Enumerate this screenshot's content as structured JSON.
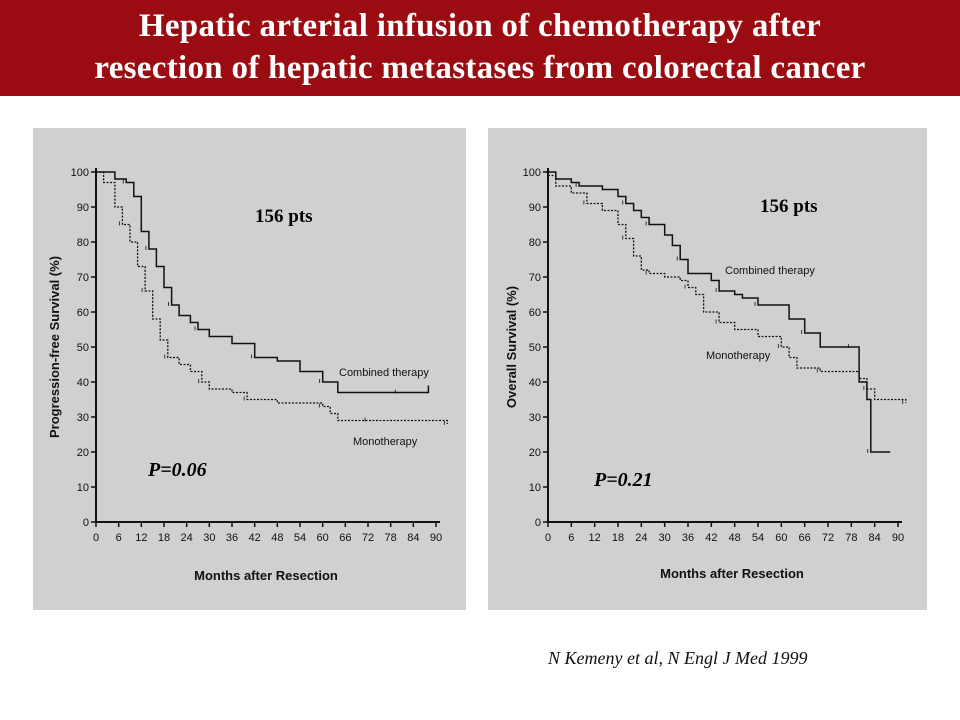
{
  "slide": {
    "title_line1": "Hepatic arterial infusion of chemotherapy after",
    "title_line2": "resection of hepatic metastases from colorectal cancer",
    "citation": "N Kemeny et al,  N Engl J Med 1999",
    "colors": {
      "title_bg": "#9b0c12",
      "panel_bg": "#d0d0d0"
    }
  },
  "chart_data": [
    {
      "type": "line",
      "xlabel": "Months after Resection",
      "ylabel": "Progression-free Survival (%)",
      "xlim": [
        0,
        90
      ],
      "ylim": [
        0,
        100
      ],
      "xticks": [
        0,
        6,
        12,
        18,
        24,
        30,
        36,
        42,
        48,
        54,
        60,
        66,
        72,
        78,
        84,
        90
      ],
      "yticks": [
        0,
        10,
        20,
        30,
        40,
        50,
        60,
        70,
        80,
        90,
        100
      ],
      "annotations": {
        "patients": "156 pts",
        "p_value": "P=0.06"
      },
      "series": [
        {
          "name": "Combined therapy",
          "style": "solid",
          "points": [
            [
              0,
              100
            ],
            [
              4,
              100
            ],
            [
              5,
              98
            ],
            [
              8,
              97
            ],
            [
              10,
              93
            ],
            [
              12,
              83
            ],
            [
              14,
              78
            ],
            [
              16,
              73
            ],
            [
              18,
              67
            ],
            [
              20,
              62
            ],
            [
              22,
              59
            ],
            [
              25,
              57
            ],
            [
              27,
              55
            ],
            [
              30,
              53
            ],
            [
              36,
              51
            ],
            [
              42,
              47
            ],
            [
              48,
              46
            ],
            [
              54,
              43
            ],
            [
              60,
              40
            ],
            [
              64,
              37
            ],
            [
              72,
              37
            ],
            [
              80,
              37
            ],
            [
              88,
              37
            ],
            [
              88,
              39
            ]
          ]
        },
        {
          "name": "Monotherapy",
          "style": "dashed",
          "points": [
            [
              0,
              100
            ],
            [
              2,
              97
            ],
            [
              5,
              90
            ],
            [
              7,
              85
            ],
            [
              9,
              80
            ],
            [
              11,
              73
            ],
            [
              13,
              66
            ],
            [
              15,
              58
            ],
            [
              17,
              52
            ],
            [
              19,
              47
            ],
            [
              22,
              45
            ],
            [
              25,
              43
            ],
            [
              28,
              40
            ],
            [
              30,
              38
            ],
            [
              36,
              37
            ],
            [
              40,
              35
            ],
            [
              48,
              34
            ],
            [
              55,
              34
            ],
            [
              60,
              33
            ],
            [
              62,
              31
            ],
            [
              64,
              29
            ],
            [
              72,
              29
            ],
            [
              80,
              29
            ],
            [
              90,
              29
            ],
            [
              93,
              28
            ]
          ]
        }
      ]
    },
    {
      "type": "line",
      "xlabel": "Months after Resection",
      "ylabel": "Overall Survival (%)",
      "xlim": [
        0,
        90
      ],
      "ylim": [
        0,
        100
      ],
      "xticks": [
        0,
        6,
        12,
        18,
        24,
        30,
        36,
        42,
        48,
        54,
        60,
        66,
        72,
        78,
        84,
        90
      ],
      "yticks": [
        0,
        10,
        20,
        30,
        40,
        50,
        60,
        70,
        80,
        90,
        100
      ],
      "annotations": {
        "patients": "156 pts",
        "p_value": "P=0.21"
      },
      "series": [
        {
          "name": "Combined therapy",
          "style": "solid",
          "points": [
            [
              0,
              100
            ],
            [
              2,
              98
            ],
            [
              6,
              97
            ],
            [
              8,
              96
            ],
            [
              14,
              95
            ],
            [
              18,
              93
            ],
            [
              20,
              91
            ],
            [
              22,
              89
            ],
            [
              24,
              87
            ],
            [
              26,
              85
            ],
            [
              30,
              82
            ],
            [
              32,
              79
            ],
            [
              34,
              75
            ],
            [
              36,
              71
            ],
            [
              42,
              69
            ],
            [
              44,
              66
            ],
            [
              48,
              65
            ],
            [
              50,
              64
            ],
            [
              54,
              62
            ],
            [
              60,
              62
            ],
            [
              62,
              58
            ],
            [
              66,
              54
            ],
            [
              70,
              50
            ],
            [
              74,
              50
            ],
            [
              78,
              50
            ],
            [
              80,
              40
            ],
            [
              82,
              35
            ],
            [
              83,
              20
            ],
            [
              88,
              20
            ]
          ]
        },
        {
          "name": "Monotherapy",
          "style": "dashed",
          "points": [
            [
              0,
              99
            ],
            [
              2,
              96
            ],
            [
              6,
              94
            ],
            [
              10,
              91
            ],
            [
              14,
              89
            ],
            [
              18,
              85
            ],
            [
              20,
              81
            ],
            [
              22,
              76
            ],
            [
              24,
              72
            ],
            [
              26,
              71
            ],
            [
              30,
              70
            ],
            [
              34,
              69
            ],
            [
              36,
              67
            ],
            [
              38,
              65
            ],
            [
              40,
              60
            ],
            [
              44,
              57
            ],
            [
              48,
              55
            ],
            [
              54,
              53
            ],
            [
              60,
              50
            ],
            [
              62,
              47
            ],
            [
              64,
              44
            ],
            [
              70,
              43
            ],
            [
              76,
              43
            ],
            [
              80,
              41
            ],
            [
              82,
              38
            ],
            [
              84,
              35
            ],
            [
              90,
              35
            ],
            [
              92,
              34
            ]
          ]
        }
      ]
    }
  ]
}
